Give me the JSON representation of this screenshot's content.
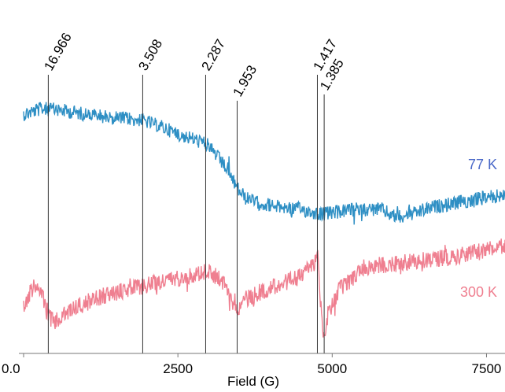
{
  "chart_data": {
    "type": "line",
    "title": "",
    "xlabel": "Field (G)",
    "ylabel": "",
    "xlim": [
      0,
      7800
    ],
    "x_ticks": [
      {
        "value": 0,
        "label": "0.0"
      },
      {
        "value": 2500,
        "label": "2500"
      },
      {
        "value": 5000,
        "label": "5000"
      },
      {
        "value": 7500,
        "label": "7500"
      }
    ],
    "grid": false,
    "legend": "inline labels at right end of each trace",
    "g_markers": [
      {
        "label": "16.966",
        "field": 400
      },
      {
        "label": "3.508",
        "field": 1930
      },
      {
        "label": "2.287",
        "field": 2950
      },
      {
        "label": "1.953",
        "field": 3460
      },
      {
        "label": "1.417",
        "field": 4760
      },
      {
        "label": "1.385",
        "field": 4870
      }
    ],
    "series": [
      {
        "name": "77 K",
        "color": "#2e8fc4",
        "label_color": "#4a68c8",
        "noise": 9,
        "points": [
          [
            0,
            145
          ],
          [
            300,
            138
          ],
          [
            600,
            140
          ],
          [
            1000,
            145
          ],
          [
            1500,
            150
          ],
          [
            1900,
            152
          ],
          [
            2200,
            160
          ],
          [
            2500,
            170
          ],
          [
            2800,
            178
          ],
          [
            3000,
            185
          ],
          [
            3200,
            205
          ],
          [
            3350,
            222
          ],
          [
            3450,
            238
          ],
          [
            3600,
            252
          ],
          [
            3800,
            258
          ],
          [
            4200,
            263
          ],
          [
            4500,
            266
          ],
          [
            4700,
            270
          ],
          [
            4850,
            272
          ],
          [
            5200,
            268
          ],
          [
            5500,
            266
          ],
          [
            5800,
            266
          ],
          [
            6000,
            275
          ],
          [
            6300,
            272
          ],
          [
            6600,
            264
          ],
          [
            7000,
            258
          ],
          [
            7400,
            252
          ],
          [
            7800,
            248
          ]
        ]
      },
      {
        "name": "300 K",
        "color": "#ef7f90",
        "label_color": "#ef7f90",
        "noise": 11,
        "points": [
          [
            0,
            390
          ],
          [
            150,
            365
          ],
          [
            300,
            372
          ],
          [
            400,
            400
          ],
          [
            500,
            410
          ],
          [
            800,
            392
          ],
          [
            1200,
            378
          ],
          [
            1600,
            370
          ],
          [
            2000,
            362
          ],
          [
            2400,
            355
          ],
          [
            2800,
            348
          ],
          [
            3000,
            345
          ],
          [
            3200,
            355
          ],
          [
            3400,
            378
          ],
          [
            3460,
            392
          ],
          [
            3600,
            380
          ],
          [
            4000,
            365
          ],
          [
            4400,
            355
          ],
          [
            4700,
            335
          ],
          [
            4770,
            322
          ],
          [
            4820,
            395
          ],
          [
            4870,
            430
          ],
          [
            4930,
            400
          ],
          [
            5100,
            370
          ],
          [
            5500,
            340
          ],
          [
            6000,
            335
          ],
          [
            6500,
            330
          ],
          [
            7000,
            325
          ],
          [
            7500,
            318
          ],
          [
            7800,
            312
          ]
        ]
      }
    ]
  }
}
